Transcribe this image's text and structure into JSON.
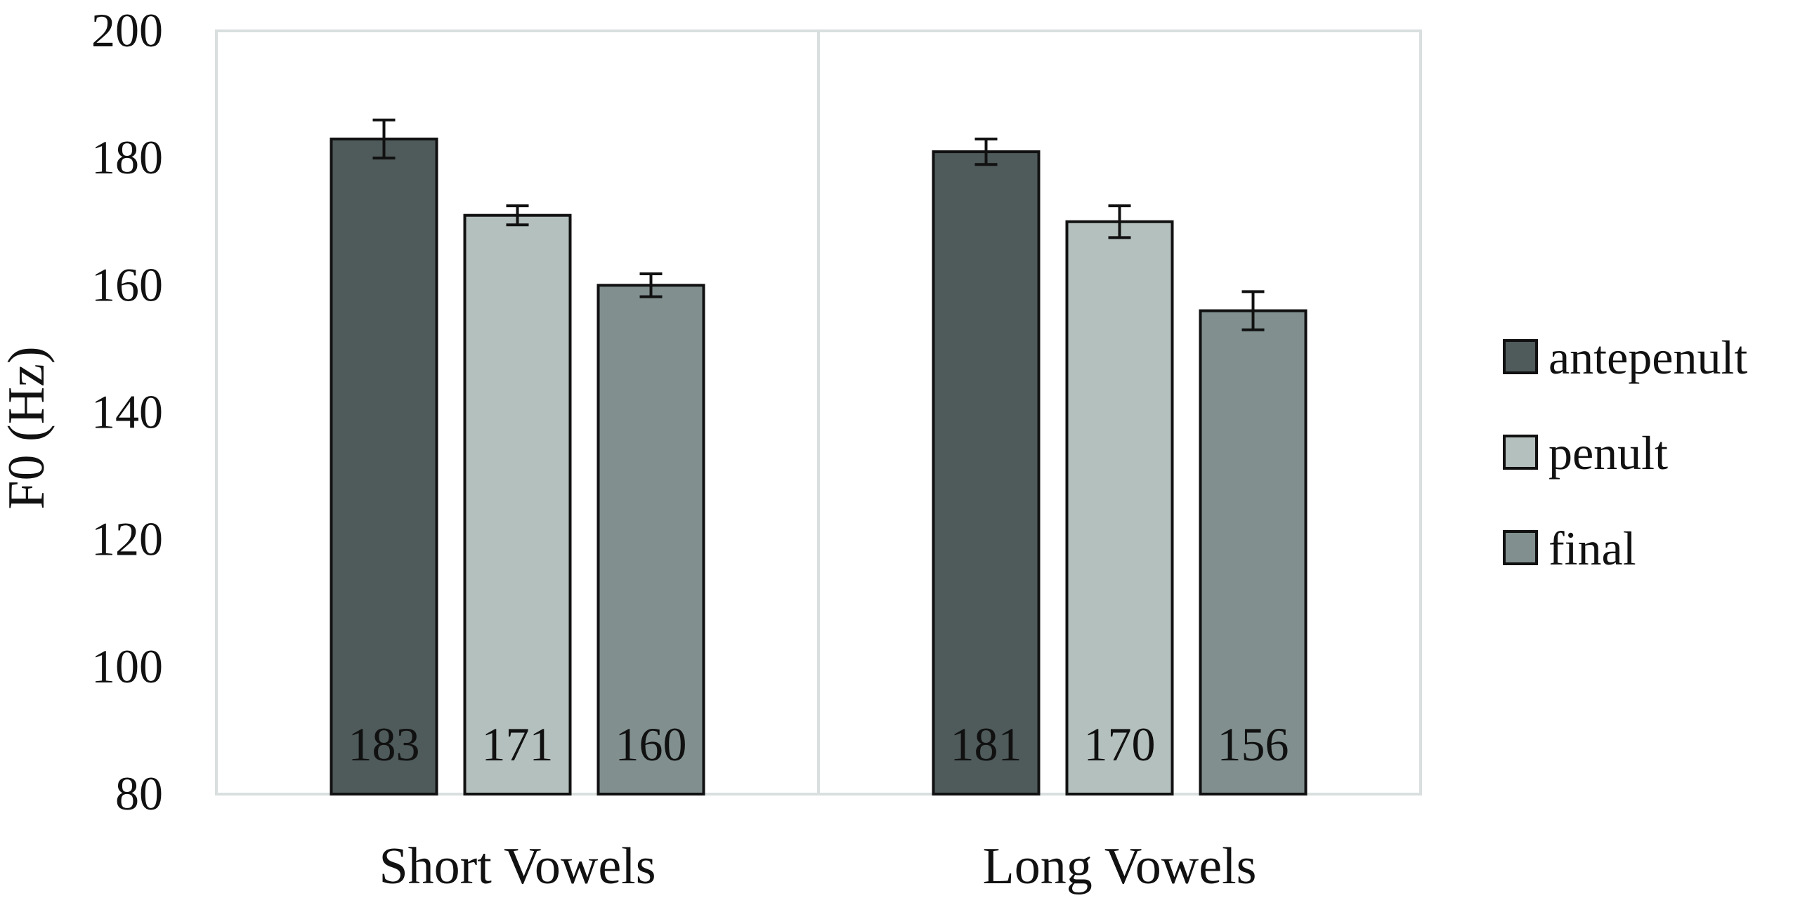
{
  "chart_data": {
    "type": "bar",
    "xlabel": "",
    "ylabel": "F0 (Hz)",
    "ylim": [
      80,
      200
    ],
    "yticks": [
      80,
      100,
      120,
      140,
      160,
      180,
      200
    ],
    "categories": [
      "Short Vowels",
      "Long Vowels"
    ],
    "series": [
      {
        "name": "antepenult",
        "color": "#4f5a5a",
        "values": [
          183,
          181
        ],
        "errors": [
          3,
          2
        ],
        "labels": [
          "183",
          "181"
        ]
      },
      {
        "name": "penult",
        "color": "#b4c0bd",
        "values": [
          171,
          170
        ],
        "errors": [
          1.5,
          2.5
        ],
        "labels": [
          "171",
          "170"
        ]
      },
      {
        "name": "final",
        "color": "#81908f",
        "values": [
          160,
          156
        ],
        "errors": [
          1.8,
          3
        ],
        "labels": [
          "160",
          "156"
        ]
      }
    ],
    "grid": {
      "horizontal": false,
      "category_separator": true
    },
    "legend_position": "right",
    "frame_color": "#d9dede"
  }
}
